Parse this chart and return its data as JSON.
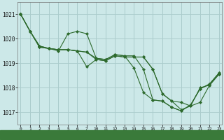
{
  "background_color": "#cce8e8",
  "grid_color": "#aacccc",
  "line_color": "#2d6a2d",
  "marker_color": "#2d6a2d",
  "ylim": [
    1016.5,
    1021.5
  ],
  "yticks": [
    1017,
    1018,
    1019,
    1020,
    1021
  ],
  "xticks_left": [
    0,
    1,
    2,
    3,
    4,
    5,
    6,
    7
  ],
  "xticks_right": [
    10,
    11,
    12,
    13,
    14,
    15,
    16,
    17,
    18,
    19,
    20,
    21,
    22,
    23
  ],
  "series": [
    {
      "x": [
        0,
        1,
        2,
        3,
        4,
        5,
        6,
        7,
        10,
        11,
        12,
        13,
        14,
        15,
        16,
        17,
        18,
        19,
        20,
        21,
        22,
        23
      ],
      "y": [
        1021.0,
        1020.3,
        1019.7,
        1019.6,
        1019.55,
        1019.55,
        1019.5,
        1019.45,
        1019.2,
        1019.15,
        1019.35,
        1019.3,
        1018.8,
        1017.8,
        1017.5,
        1017.45,
        1017.2,
        1017.05,
        1017.3,
        1017.95,
        1018.15,
        1018.6
      ]
    },
    {
      "x": [
        0,
        1,
        2,
        3,
        4,
        5,
        6,
        7,
        10,
        11,
        12,
        13,
        14,
        15,
        16,
        17,
        18,
        19,
        20,
        21,
        22,
        23
      ],
      "y": [
        1021.0,
        1020.3,
        1019.7,
        1019.6,
        1019.5,
        1020.2,
        1020.3,
        1020.2,
        1019.2,
        1019.15,
        1019.35,
        1019.3,
        1019.3,
        1018.75,
        1017.5,
        1017.45,
        1017.2,
        1017.05,
        1017.3,
        1017.95,
        1018.15,
        1018.6
      ]
    },
    {
      "x": [
        0,
        1,
        2,
        3,
        4,
        5,
        6,
        7,
        10,
        11,
        12,
        13,
        14,
        15,
        16,
        17,
        18,
        19,
        20,
        21,
        22,
        23
      ],
      "y": [
        1021.0,
        1020.3,
        1019.65,
        1019.6,
        1019.55,
        1019.55,
        1019.5,
        1019.45,
        1019.15,
        1019.1,
        1019.3,
        1019.25,
        1019.25,
        1019.25,
        1018.75,
        1017.75,
        1017.45,
        1017.4,
        1017.25,
        1018.0,
        1018.1,
        1018.55
      ]
    },
    {
      "x": [
        0,
        1,
        2,
        3,
        4,
        5,
        6,
        7,
        10,
        11,
        12,
        13,
        14,
        15,
        16,
        17,
        18,
        19,
        20,
        21,
        22,
        23
      ],
      "y": [
        1021.0,
        1020.3,
        1019.65,
        1019.6,
        1019.55,
        1019.55,
        1019.5,
        1018.85,
        1019.15,
        1019.1,
        1019.3,
        1019.25,
        1019.25,
        1019.25,
        1018.75,
        1017.75,
        1017.45,
        1017.1,
        1017.25,
        1017.4,
        1018.1,
        1018.55
      ]
    }
  ]
}
